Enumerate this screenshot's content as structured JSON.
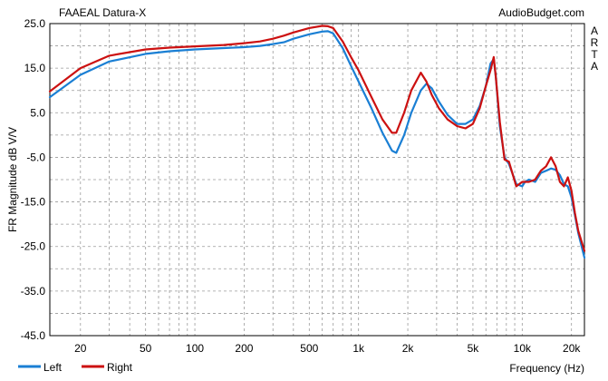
{
  "chart_data": {
    "type": "line",
    "title": "FAAEAL Datura-X",
    "source": "AudioBudget.com",
    "side_label": "A R T A",
    "xlabel": "Frequency (Hz)",
    "ylabel": "FR Magnitude dB V/V",
    "x_scale": "log",
    "xlim": [
      13,
      24000
    ],
    "ylim": [
      -45,
      25
    ],
    "yticks": [
      "25.0",
      "15.0",
      "5.0",
      "-5.0",
      "-15.0",
      "-25.0",
      "-35.0",
      "-45.0"
    ],
    "ytick_values": [
      25,
      15,
      5,
      -5,
      -15,
      -25,
      -35,
      -45
    ],
    "xticks": [
      "20",
      "50",
      "100",
      "200",
      "500",
      "1k",
      "2k",
      "5k",
      "10k",
      "20k"
    ],
    "xtick_values": [
      20,
      50,
      100,
      200,
      500,
      1000,
      2000,
      5000,
      10000,
      20000
    ],
    "grid": true,
    "legend_position": "bottom-left",
    "series": [
      {
        "name": "Left",
        "color": "#1a7fd4",
        "x": [
          13,
          20,
          30,
          50,
          70,
          100,
          150,
          200,
          250,
          300,
          350,
          400,
          500,
          600,
          650,
          700,
          800,
          900,
          1000,
          1200,
          1400,
          1600,
          1700,
          1900,
          2100,
          2400,
          2600,
          2800,
          3100,
          3500,
          4000,
          4500,
          5000,
          5500,
          6000,
          6400,
          6700,
          6900,
          7300,
          7800,
          8300,
          9200,
          10000,
          10400,
          11000,
          12000,
          13000,
          14000,
          15000,
          16000,
          17000,
          18000,
          19000,
          20000,
          21000,
          22000,
          24000
        ],
        "y": [
          8.5,
          13.5,
          16.5,
          18.2,
          18.8,
          19.2,
          19.5,
          19.7,
          20.0,
          20.4,
          20.8,
          21.6,
          22.6,
          23.2,
          23.3,
          22.8,
          19.5,
          15.5,
          12,
          6,
          0.5,
          -3.5,
          -4,
          0,
          5,
          10,
          11.5,
          10.5,
          7.5,
          4.5,
          2.5,
          2.5,
          3.5,
          6.5,
          11,
          16,
          17,
          13,
          2,
          -5,
          -6.5,
          -11,
          -11.5,
          -10.5,
          -10,
          -10.5,
          -8.5,
          -8,
          -7.5,
          -7.8,
          -9,
          -11,
          -11.5,
          -14,
          -18,
          -22,
          -27.5
        ]
      },
      {
        "name": "Right",
        "color": "#cc1111",
        "x": [
          13,
          20,
          30,
          50,
          70,
          100,
          150,
          200,
          250,
          300,
          350,
          400,
          500,
          600,
          650,
          700,
          800,
          900,
          1000,
          1200,
          1400,
          1600,
          1700,
          1900,
          2100,
          2400,
          2600,
          2800,
          3100,
          3500,
          4000,
          4500,
          5000,
          5500,
          6000,
          6400,
          6700,
          6900,
          7300,
          7800,
          8300,
          9200,
          10000,
          10400,
          11000,
          12000,
          13000,
          14000,
          15000,
          16000,
          17000,
          18000,
          19000,
          20000,
          21000,
          22000,
          24000
        ],
        "y": [
          9.8,
          15.0,
          17.8,
          19.2,
          19.6,
          19.9,
          20.2,
          20.6,
          21.0,
          21.6,
          22.3,
          23.0,
          24.0,
          24.5,
          24.4,
          24.0,
          21.0,
          17.5,
          14.5,
          8.5,
          3.5,
          0.5,
          0.5,
          5,
          10,
          14,
          12,
          9,
          6,
          3.5,
          2,
          1.5,
          2.5,
          6,
          11,
          14.5,
          17.5,
          13,
          3,
          -5.5,
          -6,
          -11.5,
          -10.5,
          -10.5,
          -10.5,
          -10,
          -8,
          -7,
          -5,
          -7,
          -10.5,
          -11.5,
          -9.5,
          -12.5,
          -17.5,
          -21.5,
          -26
        ]
      }
    ]
  }
}
